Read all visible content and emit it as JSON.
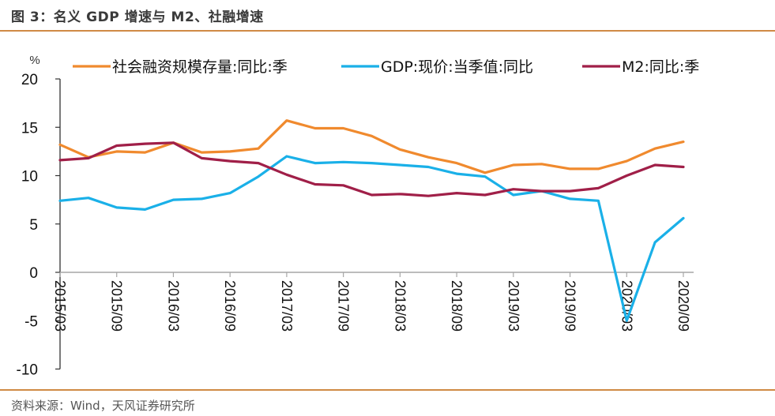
{
  "header": {
    "title": "图 3：名义 GDP 增速与 M2、社融增速"
  },
  "footer": {
    "source": "资料来源：Wind，天风证券研究所"
  },
  "colors": {
    "accent_rule": "#d08a45",
    "axis": "#333333",
    "zero_line": "#a6a6a6"
  },
  "chart_data": {
    "type": "line",
    "title": "名义 GDP 增速与 M2、社融增速",
    "ylabel": "%",
    "xlabel": "",
    "ylim": [
      -10,
      20
    ],
    "yticks": [
      -10,
      -5,
      0,
      5,
      10,
      15,
      20
    ],
    "grid": false,
    "legend_position": "top",
    "x": [
      "2015/03",
      "2015/06",
      "2015/09",
      "2015/12",
      "2016/03",
      "2016/06",
      "2016/09",
      "2016/12",
      "2017/03",
      "2017/06",
      "2017/09",
      "2017/12",
      "2018/03",
      "2018/06",
      "2018/09",
      "2018/12",
      "2019/03",
      "2019/06",
      "2019/09",
      "2019/12",
      "2020/03",
      "2020/06",
      "2020/09"
    ],
    "xtick_labels": [
      "2015/03",
      "2015/09",
      "2016/03",
      "2016/09",
      "2017/03",
      "2017/09",
      "2018/03",
      "2018/09",
      "2019/03",
      "2019/09",
      "2020/03",
      "2020/09"
    ],
    "series": [
      {
        "name": "社会融资规模存量:同比:季",
        "color": "#f08a2e",
        "values": [
          13.2,
          11.9,
          12.5,
          12.4,
          13.4,
          12.4,
          12.5,
          12.8,
          15.7,
          14.9,
          14.9,
          14.1,
          12.7,
          11.9,
          11.3,
          10.3,
          11.1,
          11.2,
          10.7,
          10.7,
          11.5,
          12.8,
          13.5
        ]
      },
      {
        "name": "GDP:现价:当季值:同比",
        "color": "#1ab0e8",
        "values": [
          7.4,
          7.7,
          6.7,
          6.5,
          7.5,
          7.6,
          8.2,
          9.9,
          12.0,
          11.3,
          11.4,
          11.3,
          11.1,
          10.9,
          10.2,
          9.9,
          8.0,
          8.4,
          7.6,
          7.4,
          -5.0,
          3.1,
          5.6
        ]
      },
      {
        "name": "M2:同比:季",
        "color": "#a01f48",
        "values": [
          11.6,
          11.8,
          13.1,
          13.3,
          13.4,
          11.8,
          11.5,
          11.3,
          10.1,
          9.1,
          9.0,
          8.0,
          8.1,
          7.9,
          8.2,
          8.0,
          8.6,
          8.4,
          8.4,
          8.7,
          10.0,
          11.1,
          10.9
        ]
      }
    ]
  }
}
